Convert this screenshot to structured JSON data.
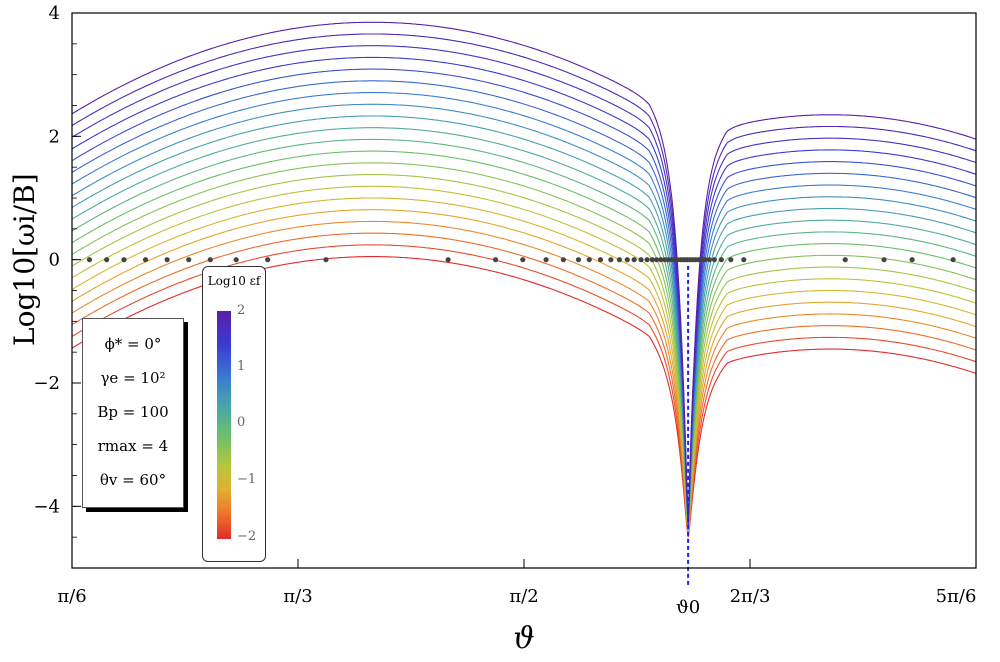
{
  "chart_data": {
    "type": "line",
    "xlabel": "ϑ",
    "ylabel": "Log10[ωi/B]",
    "xlim": [
      0.5236,
      2.618
    ],
    "ylim": [
      -5.0,
      4.0
    ],
    "x_ticks": [
      {
        "value": 0.5236,
        "label": "π/6"
      },
      {
        "value": 1.0472,
        "label": "π/3"
      },
      {
        "value": 1.5708,
        "label": "π/2"
      },
      {
        "value": 2.0944,
        "label": "2π/3"
      },
      {
        "value": 2.618,
        "label": "5π/6"
      }
    ],
    "y_ticks": [
      {
        "value": 4,
        "label": "4"
      },
      {
        "value": 2,
        "label": "2"
      },
      {
        "value": 0,
        "label": "0"
      },
      {
        "value": -2,
        "label": "−2"
      },
      {
        "value": -4,
        "label": "−4"
      }
    ],
    "theta0": {
      "value": 1.951,
      "label": "ϑ0",
      "color": "#2222dd"
    },
    "series_count": 21,
    "color_param": {
      "title": "Log10 εf",
      "range": [
        -2,
        2
      ],
      "tick_labels": [
        "2",
        "1",
        "0",
        "−1",
        "−2"
      ]
    },
    "curve_model": {
      "description_values_bottom_curve": {
        "peak_left": 0.05,
        "left_start": -1.45,
        "right_peak": -1.45,
        "right_end": -2.1,
        "dip_min": -4.5
      },
      "offset_step": 0.19
    },
    "dots_x": [
      0.564,
      0.604,
      0.644,
      0.694,
      0.744,
      0.794,
      0.844,
      0.904,
      0.977,
      1.112,
      1.395,
      1.505,
      1.568,
      1.622,
      1.662,
      1.697,
      1.722,
      1.748,
      1.772,
      1.792,
      1.81,
      1.826,
      1.842,
      1.856,
      1.868,
      1.878,
      1.888,
      1.897,
      1.905,
      1.913,
      1.92,
      1.927,
      1.934,
      1.94,
      1.945,
      1.95,
      1.956,
      1.962,
      1.968,
      1.975,
      1.982,
      1.99,
      2.0,
      2.012,
      2.028,
      2.05,
      2.08,
      2.315,
      2.405,
      2.47,
      2.565
    ],
    "grid": false,
    "legend": "colorbar"
  },
  "params": [
    "ϕ* = 0°",
    "γe = 10²",
    "Bp = 100",
    "rmax = 4",
    "θv = 60°"
  ]
}
